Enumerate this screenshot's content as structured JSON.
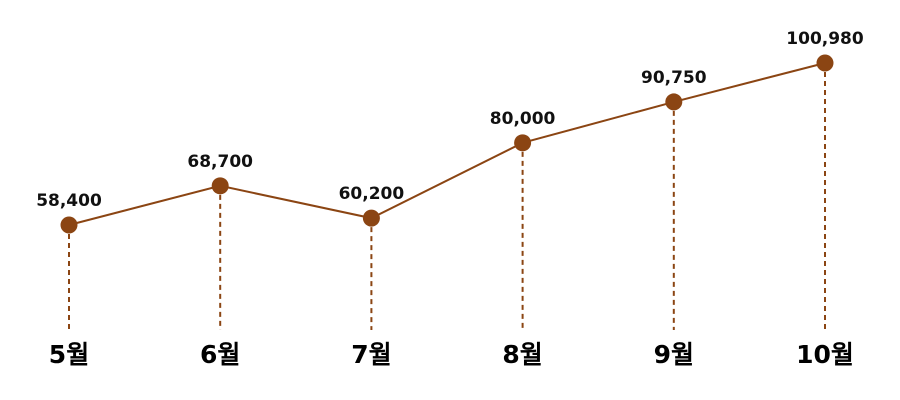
{
  "chart_data": {
    "type": "line",
    "title": "",
    "xlabel": "",
    "ylabel": "",
    "categories": [
      "5월",
      "6월",
      "7월",
      "8월",
      "9월",
      "10월"
    ],
    "series": [
      {
        "values": [
          58400,
          68700,
          60200,
          80000,
          90750,
          100980
        ],
        "labels": [
          "58,400",
          "68,700",
          "60,200",
          "80,000",
          "90,750",
          "100,980"
        ]
      }
    ],
    "ylim": [
      0,
      105000
    ],
    "grid": false,
    "colors": {
      "line": "#8b4513",
      "marker": "#8b4513",
      "drop_line": "#8b4513"
    }
  }
}
